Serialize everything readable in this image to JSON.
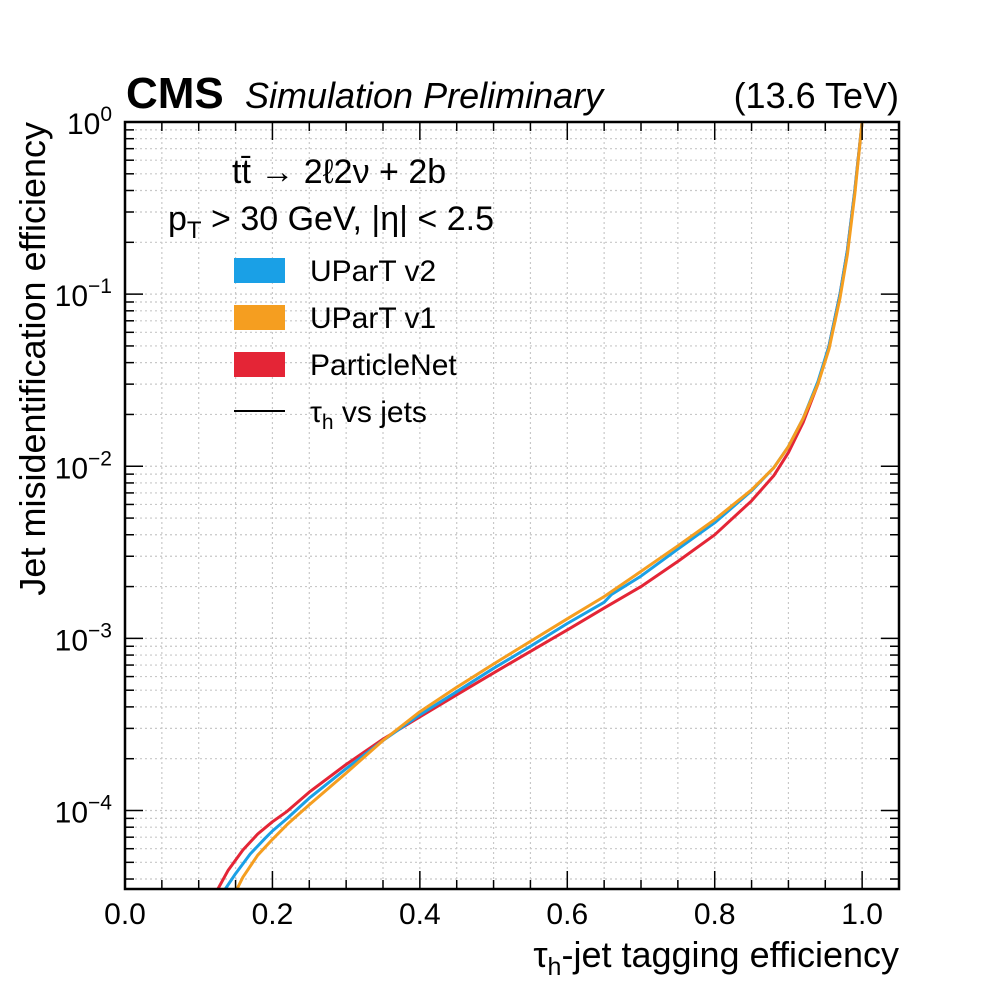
{
  "header": {
    "brand": "CMS",
    "subtitle": "Simulation Preliminary",
    "energy": "(13.6 TeV)"
  },
  "annotations": {
    "process": "tt̄ → 2ℓ2ν + 2b",
    "cuts": "p_T > 30 GeV, |η| < 2.5"
  },
  "chart_data": {
    "type": "line",
    "title": "",
    "xlabel": "τ_h-jet tagging efficiency",
    "ylabel": "Jet misidentification efficiency",
    "xlim": [
      0.0,
      1.05
    ],
    "ylim": [
      3.5e-05,
      1.0
    ],
    "yscale": "log",
    "grid": true,
    "legend_position": "top-left",
    "x_ticks": [
      0.0,
      0.2,
      0.4,
      0.6,
      0.8,
      1.0
    ],
    "x_tick_labels": [
      "0.0",
      "0.2",
      "0.4",
      "0.6",
      "0.8",
      "1.0"
    ],
    "y_ticks": [
      0.0001,
      0.001,
      0.01,
      0.1,
      1
    ],
    "y_tick_labels": [
      "10^-4",
      "10^-3",
      "10^-2",
      "10^-1",
      "10^0"
    ],
    "legend": [
      {
        "label": "UParT v2",
        "kind": "patch",
        "color": "#1aa0e6"
      },
      {
        "label": "UParT v1",
        "kind": "patch",
        "color": "#f59e20"
      },
      {
        "label": "ParticleNet",
        "kind": "patch",
        "color": "#e42536"
      },
      {
        "label": "τ_h vs jets",
        "kind": "line",
        "color": "#000000"
      }
    ],
    "series": [
      {
        "name": "ParticleNet",
        "color": "#e42536",
        "x": [
          0.126,
          0.14,
          0.16,
          0.18,
          0.2,
          0.22,
          0.25,
          0.3,
          0.35,
          0.4,
          0.45,
          0.5,
          0.55,
          0.6,
          0.65,
          0.7,
          0.75,
          0.8,
          0.85,
          0.88,
          0.9,
          0.92,
          0.94,
          0.955,
          0.97,
          0.98,
          0.99,
          1.0
        ],
        "y": [
          3.5e-05,
          4.5e-05,
          5.9e-05,
          7.3e-05,
          8.6e-05,
          9.9e-05,
          0.000128,
          0.000185,
          0.00026,
          0.00035,
          0.00047,
          0.00063,
          0.00084,
          0.00112,
          0.0015,
          0.002,
          0.0028,
          0.004,
          0.0063,
          0.0088,
          0.012,
          0.018,
          0.03,
          0.05,
          0.1,
          0.18,
          0.4,
          1.0
        ]
      },
      {
        "name": "UParT v2",
        "color": "#1aa0e6",
        "x": [
          0.136,
          0.15,
          0.17,
          0.19,
          0.2,
          0.22,
          0.25,
          0.3,
          0.35,
          0.4,
          0.45,
          0.5,
          0.55,
          0.6,
          0.65,
          0.66,
          0.7,
          0.75,
          0.8,
          0.85,
          0.88,
          0.9,
          0.92,
          0.94,
          0.955,
          0.97,
          0.98,
          0.99,
          1.0
        ],
        "y": [
          3.5e-05,
          4.3e-05,
          5.6e-05,
          6.9e-05,
          7.6e-05,
          9e-05,
          0.000118,
          0.000175,
          0.000255,
          0.00036,
          0.00049,
          0.00067,
          0.0009,
          0.00122,
          0.00162,
          0.0018,
          0.0023,
          0.0033,
          0.0047,
          0.0072,
          0.0098,
          0.013,
          0.019,
          0.031,
          0.05,
          0.1,
          0.18,
          0.4,
          1.0
        ]
      },
      {
        "name": "UParT v1",
        "color": "#f59e20",
        "x": [
          0.152,
          0.16,
          0.18,
          0.2,
          0.22,
          0.25,
          0.3,
          0.35,
          0.4,
          0.45,
          0.5,
          0.55,
          0.6,
          0.65,
          0.7,
          0.75,
          0.8,
          0.85,
          0.88,
          0.9,
          0.92,
          0.94,
          0.955,
          0.97,
          0.98,
          0.99,
          1.0
        ],
        "y": [
          3.5e-05,
          4.1e-05,
          5.5e-05,
          6.8e-05,
          8.3e-05,
          0.000108,
          0.000165,
          0.000255,
          0.000375,
          0.00052,
          0.00071,
          0.00096,
          0.0013,
          0.00175,
          0.00245,
          0.00345,
          0.0049,
          0.0073,
          0.0098,
          0.013,
          0.019,
          0.03,
          0.048,
          0.095,
          0.17,
          0.38,
          1.0
        ]
      }
    ]
  }
}
